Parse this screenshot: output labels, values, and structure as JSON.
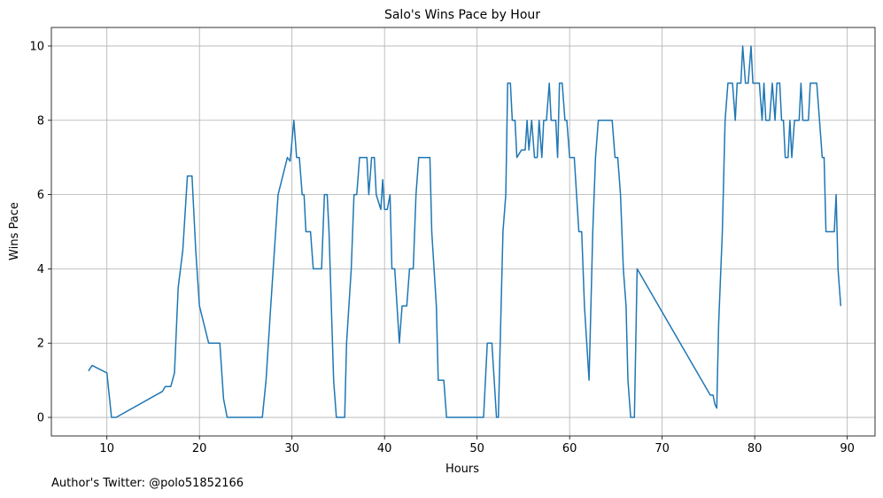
{
  "footer_text": "Author's Twitter: @polo51852166",
  "chart_data": {
    "type": "line",
    "title": "Salo's Wins Pace by Hour",
    "xlabel": "Hours",
    "ylabel": "Wins Pace",
    "xlim": [
      4.0,
      93.0
    ],
    "ylim": [
      -0.5,
      10.5
    ],
    "xticks": [
      10,
      20,
      30,
      40,
      50,
      60,
      70,
      80,
      90
    ],
    "yticks": [
      0,
      2,
      4,
      6,
      8,
      10
    ],
    "grid": true,
    "legend": "none",
    "line_color": "#1f77b4",
    "series": [
      {
        "points": [
          [
            8.0,
            1.25
          ],
          [
            8.4,
            1.4
          ],
          [
            10.0,
            1.2
          ],
          [
            10.5,
            0.0
          ],
          [
            11.0,
            0.0
          ],
          [
            16.0,
            0.7
          ],
          [
            16.3,
            0.83
          ],
          [
            16.9,
            0.83
          ],
          [
            17.3,
            1.2
          ],
          [
            17.7,
            3.5
          ],
          [
            18.2,
            4.5
          ],
          [
            18.7,
            6.5
          ],
          [
            19.2,
            6.5
          ],
          [
            19.6,
            4.5
          ],
          [
            20.0,
            3.0
          ],
          [
            21.0,
            2.0
          ],
          [
            22.2,
            2.0
          ],
          [
            22.6,
            0.5
          ],
          [
            23.0,
            0.0
          ],
          [
            26.8,
            0.0
          ],
          [
            27.2,
            1.0
          ],
          [
            27.7,
            3.0
          ],
          [
            28.5,
            6.0
          ],
          [
            29.5,
            7.0
          ],
          [
            29.8,
            6.9
          ],
          [
            30.2,
            8.0
          ],
          [
            30.5,
            7.0
          ],
          [
            30.8,
            7.0
          ],
          [
            31.1,
            6.0
          ],
          [
            31.3,
            6.0
          ],
          [
            31.5,
            5.0
          ],
          [
            32.0,
            5.0
          ],
          [
            32.3,
            4.0
          ],
          [
            33.2,
            4.0
          ],
          [
            33.5,
            6.0
          ],
          [
            33.8,
            6.0
          ],
          [
            34.0,
            5.0
          ],
          [
            34.5,
            1.0
          ],
          [
            34.8,
            0.0
          ],
          [
            35.7,
            0.0
          ],
          [
            35.9,
            2.0
          ],
          [
            36.4,
            4.0
          ],
          [
            36.7,
            6.0
          ],
          [
            37.0,
            6.0
          ],
          [
            37.3,
            7.0
          ],
          [
            38.1,
            7.0
          ],
          [
            38.3,
            6.0
          ],
          [
            38.6,
            7.0
          ],
          [
            38.9,
            7.0
          ],
          [
            39.1,
            6.0
          ],
          [
            39.6,
            5.6
          ],
          [
            39.8,
            6.4
          ],
          [
            40.0,
            5.6
          ],
          [
            40.3,
            5.6
          ],
          [
            40.6,
            6.0
          ],
          [
            40.8,
            4.0
          ],
          [
            41.1,
            4.0
          ],
          [
            41.6,
            2.0
          ],
          [
            41.9,
            3.0
          ],
          [
            42.4,
            3.0
          ],
          [
            42.7,
            4.0
          ],
          [
            43.1,
            4.0
          ],
          [
            43.4,
            6.0
          ],
          [
            43.7,
            7.0
          ],
          [
            44.9,
            7.0
          ],
          [
            45.1,
            5.0
          ],
          [
            45.6,
            3.0
          ],
          [
            45.8,
            1.0
          ],
          [
            46.4,
            1.0
          ],
          [
            46.7,
            0.0
          ],
          [
            50.3,
            0.0
          ],
          [
            50.7,
            0.0
          ],
          [
            51.1,
            2.0
          ],
          [
            51.6,
            2.0
          ],
          [
            52.1,
            0.0
          ],
          [
            52.3,
            0.0
          ],
          [
            52.8,
            5.0
          ],
          [
            53.1,
            6.0
          ],
          [
            53.3,
            9.0
          ],
          [
            53.6,
            9.0
          ],
          [
            53.8,
            8.0
          ],
          [
            54.1,
            8.0
          ],
          [
            54.3,
            7.0
          ],
          [
            54.8,
            7.2
          ],
          [
            55.2,
            7.2
          ],
          [
            55.4,
            8.0
          ],
          [
            55.6,
            7.2
          ],
          [
            55.9,
            8.0
          ],
          [
            56.2,
            7.0
          ],
          [
            56.5,
            7.0
          ],
          [
            56.7,
            8.0
          ],
          [
            57.0,
            7.0
          ],
          [
            57.2,
            8.0
          ],
          [
            57.5,
            8.0
          ],
          [
            57.8,
            9.0
          ],
          [
            58.0,
            8.0
          ],
          [
            58.5,
            8.0
          ],
          [
            58.7,
            7.0
          ],
          [
            58.9,
            9.0
          ],
          [
            59.2,
            9.0
          ],
          [
            59.5,
            8.0
          ],
          [
            59.7,
            8.0
          ],
          [
            60.0,
            7.0
          ],
          [
            60.5,
            7.0
          ],
          [
            61.0,
            5.0
          ],
          [
            61.3,
            5.0
          ],
          [
            61.6,
            3.0
          ],
          [
            62.1,
            1.0
          ],
          [
            62.5,
            5.0
          ],
          [
            62.8,
            7.0
          ],
          [
            63.1,
            8.0
          ],
          [
            64.6,
            8.0
          ],
          [
            64.9,
            7.0
          ],
          [
            65.2,
            7.0
          ],
          [
            65.5,
            6.0
          ],
          [
            65.8,
            4.0
          ],
          [
            66.1,
            3.0
          ],
          [
            66.3,
            1.0
          ],
          [
            66.6,
            0.0
          ],
          [
            67.0,
            0.0
          ],
          [
            67.3,
            4.0
          ],
          [
            75.2,
            0.6
          ],
          [
            75.5,
            0.6
          ],
          [
            75.7,
            0.35
          ],
          [
            75.9,
            0.25
          ],
          [
            76.1,
            2.5
          ],
          [
            76.5,
            5.0
          ],
          [
            76.8,
            8.0
          ],
          [
            77.1,
            9.0
          ],
          [
            77.6,
            9.0
          ],
          [
            77.9,
            8.0
          ],
          [
            78.1,
            9.0
          ],
          [
            78.5,
            9.0
          ],
          [
            78.7,
            10.0
          ],
          [
            79.0,
            9.0
          ],
          [
            79.3,
            9.0
          ],
          [
            79.6,
            10.0
          ],
          [
            79.8,
            9.0
          ],
          [
            80.5,
            9.0
          ],
          [
            80.8,
            8.0
          ],
          [
            81.0,
            9.0
          ],
          [
            81.2,
            8.0
          ],
          [
            81.6,
            8.0
          ],
          [
            81.9,
            9.0
          ],
          [
            82.2,
            8.0
          ],
          [
            82.4,
            9.0
          ],
          [
            82.7,
            9.0
          ],
          [
            82.9,
            8.0
          ],
          [
            83.1,
            8.0
          ],
          [
            83.3,
            7.0
          ],
          [
            83.6,
            7.0
          ],
          [
            83.8,
            8.0
          ],
          [
            84.0,
            7.0
          ],
          [
            84.3,
            8.0
          ],
          [
            84.8,
            8.0
          ],
          [
            85.0,
            9.0
          ],
          [
            85.2,
            8.0
          ],
          [
            85.8,
            8.0
          ],
          [
            86.0,
            9.0
          ],
          [
            86.7,
            9.0
          ],
          [
            87.0,
            8.0
          ],
          [
            87.3,
            7.0
          ],
          [
            87.5,
            7.0
          ],
          [
            87.7,
            5.0
          ],
          [
            88.6,
            5.0
          ],
          [
            88.8,
            6.0
          ],
          [
            89.0,
            4.0
          ],
          [
            89.3,
            3.0
          ]
        ]
      }
    ]
  }
}
